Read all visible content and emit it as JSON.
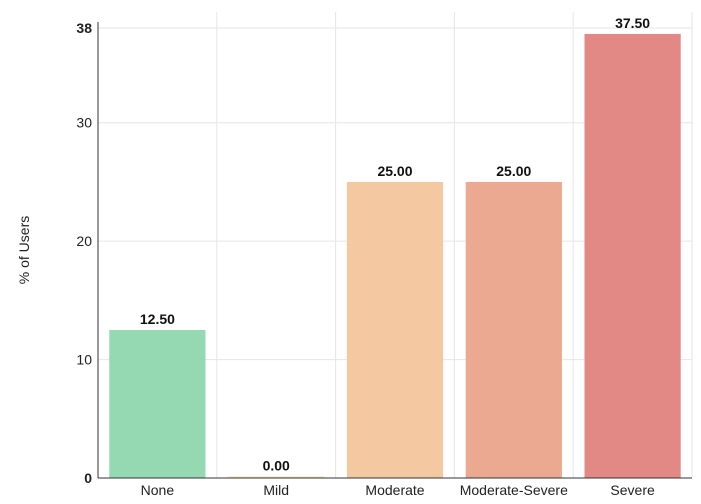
{
  "chart_data": {
    "type": "bar",
    "categories": [
      "None",
      "Mild",
      "Moderate",
      "Moderate-Severe",
      "Severe"
    ],
    "values": [
      12.5,
      0.0,
      25.0,
      25.0,
      37.5
    ],
    "value_labels": [
      "12.50",
      "0.00",
      "25.00",
      "25.00",
      "37.50"
    ],
    "colors": [
      "#94d9b1",
      "#f7e3ad",
      "#f4c9a1",
      "#eaa990",
      "#e38985"
    ],
    "ylabel": "% of Users",
    "xlabel": "",
    "ylim": [
      0,
      38
    ],
    "yticks": [
      0,
      10,
      20,
      30,
      38
    ],
    "ytick_labels": [
      "0",
      "10",
      "20",
      "30",
      "38"
    ],
    "bold_yticks": [
      0,
      38
    ],
    "grid": true
  }
}
